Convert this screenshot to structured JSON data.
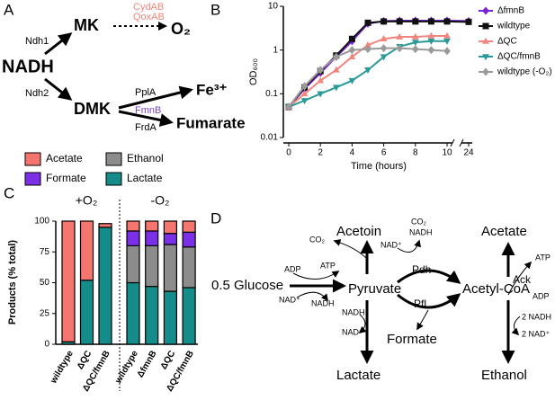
{
  "panel_labels": [
    "A",
    "B",
    "C",
    "D"
  ],
  "diagram_a": {
    "nodes": [
      "NADH",
      "MK",
      "DMK",
      "O₂",
      "Fe³⁺",
      "Fumarate"
    ],
    "enzymes": [
      "Ndh1",
      "Ndh2",
      "CydAB",
      "QoxAB",
      "PplA",
      "FmnB",
      "FrdA"
    ]
  },
  "diagram_d": {
    "nodes": [
      "0.5 Glucose",
      "Pyruvate",
      "Acetyl-CoA",
      "Acetoin",
      "Lactate",
      "Formate",
      "Acetate",
      "Ethanol"
    ],
    "enzymes": [
      "Pdh",
      "Pfl",
      "Ack"
    ],
    "cofactors": [
      "ADP",
      "ATP",
      "NAD⁺",
      "NADH",
      "CO₂",
      "CO₂",
      "NADH",
      "NAD⁺",
      "NADH",
      "NAD⁺",
      "ATP",
      "ADP",
      "2 NADH",
      "2 NAD⁺"
    ]
  },
  "chart_data": [
    {
      "type": "line",
      "ylabel": "OD₆₀₀",
      "xlabel": "Time (hours)",
      "log_y": true,
      "x": [
        0,
        1,
        2,
        3,
        4,
        5,
        6,
        7,
        8,
        9,
        10,
        24
      ],
      "xlim": [
        0,
        24
      ],
      "xticks": [
        0,
        2,
        4,
        6,
        8,
        10,
        24
      ],
      "ylim": [
        0.01,
        10
      ],
      "yticks": [
        0.01,
        0.1,
        1,
        10
      ],
      "series": [
        {
          "name": "ΔfmnB",
          "color": "#7a22d6",
          "marker": "diamond",
          "values": [
            0.05,
            0.13,
            0.3,
            0.7,
            1.6,
            4.0,
            4.6,
            4.7,
            4.7,
            4.7,
            4.7,
            4.6
          ]
        },
        {
          "name": "wildtype",
          "color": "#111111",
          "marker": "square",
          "values": [
            0.05,
            0.14,
            0.33,
            0.75,
            1.8,
            4.2,
            4.5,
            4.5,
            4.5,
            4.5,
            4.5,
            4.4
          ]
        },
        {
          "name": "ΔQC",
          "color": "#f2857e",
          "marker": "triangle-up",
          "values": [
            0.05,
            0.1,
            0.2,
            0.35,
            0.7,
            1.3,
            1.8,
            2.0,
            2.0,
            2.1,
            2.1,
            null
          ]
        },
        {
          "name": "ΔQC/fmnB",
          "color": "#2a9a98",
          "marker": "triangle-down",
          "values": [
            0.05,
            0.07,
            0.1,
            0.14,
            0.2,
            0.35,
            0.7,
            1.2,
            1.5,
            1.6,
            1.6,
            null
          ]
        },
        {
          "name": "wildtype (-O₂)",
          "color": "#9a9a9a",
          "marker": "diamond",
          "values": [
            0.05,
            0.15,
            0.35,
            0.7,
            1.0,
            1.05,
            1.1,
            1.1,
            1.05,
            1.0,
            0.95,
            null
          ]
        }
      ]
    },
    {
      "type": "stacked_bar",
      "ylabel": "Products (% total)",
      "annotations": [
        "+O₂",
        "-O₂"
      ],
      "categories": [
        "wildtype",
        "ΔQC",
        "ΔQC/fmnB",
        "wildtype",
        "ΔfmnB",
        "ΔQC",
        "ΔQC/fmnB"
      ],
      "ylim": [
        0,
        100
      ],
      "yticks": [
        0,
        25,
        50,
        75,
        100
      ],
      "series": [
        {
          "name": "Acetate",
          "color": "#f4766e",
          "values": [
            98,
            48,
            3,
            8,
            8,
            10,
            9
          ]
        },
        {
          "name": "Formate",
          "color": "#7b2fe6",
          "values": [
            0,
            0,
            0,
            12,
            12,
            9,
            12
          ]
        },
        {
          "name": "Ethanol",
          "color": "#8c8c8c",
          "values": [
            0,
            0,
            0,
            30,
            33,
            38,
            33
          ]
        },
        {
          "name": "Lactate",
          "color": "#148c8a",
          "values": [
            2,
            52,
            95,
            50,
            47,
            43,
            46
          ]
        }
      ]
    }
  ]
}
